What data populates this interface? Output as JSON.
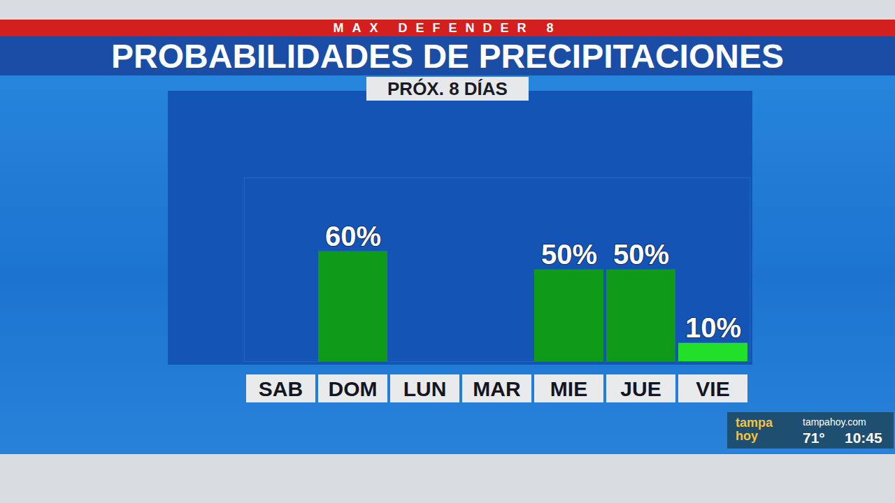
{
  "chart_data": {
    "type": "bar",
    "supertitle": "MAX DEFENDER 8",
    "title": "PROBABILIDADES DE PRECIPITACIONES",
    "subtitle": "PRÓX. 8 DÍAS",
    "categories": [
      "SAB",
      "DOM",
      "LUN",
      "MAR",
      "MIE",
      "JUE",
      "VIE"
    ],
    "values": [
      null,
      60,
      0,
      0,
      50,
      50,
      10
    ],
    "value_labels": [
      null,
      "60%",
      null,
      null,
      "50%",
      "50%",
      "10%"
    ],
    "colors": [
      "#109a1a",
      "#109a1a",
      "#109a1a",
      "#109a1a",
      "#109a1a",
      "#109a1a",
      "#22e02a"
    ],
    "ylim": [
      0,
      100
    ],
    "data_labels": true,
    "tick_labels": "x",
    "grid": false,
    "annotations": [
      "tampa hoy",
      "tampahoy.com",
      "71°",
      "10:45"
    ]
  }
}
